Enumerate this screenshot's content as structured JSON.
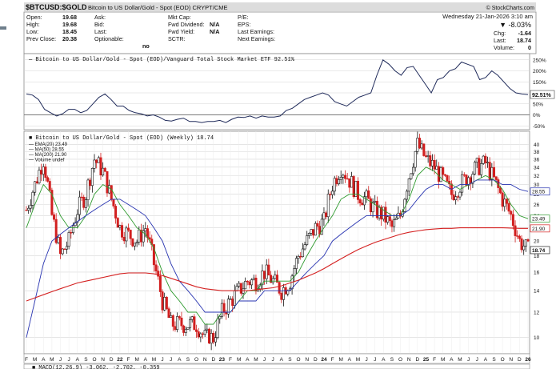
{
  "header": {
    "symbol_title": "$BTCUSD:$GOLD",
    "subtitle": "Bitcoin to US Dollar/Gold - Spot (EOD)  CRYPT/CME",
    "watermark": "© StockCharts.com",
    "date_time": "Wednesday  21-Jan-2026  3:10 am",
    "change_pct": "▼ -8.03%",
    "stats": [
      {
        "label": "Open:",
        "value": "19.68"
      },
      {
        "label": "High:",
        "value": "19.68"
      },
      {
        "label": "Low:",
        "value": "18.45"
      },
      {
        "label": "Prev Close:",
        "value": "20.38"
      }
    ],
    "col2": [
      "Ask:",
      "Bid:",
      "Last:",
      "Optionable:"
    ],
    "col2_value": "no",
    "col3": [
      {
        "label": "Mkt Cap:",
        "value": ""
      },
      {
        "label": "Fwd Dividend:",
        "value": "N/A"
      },
      {
        "label": "Fwd Yield:",
        "value": "N/A"
      },
      {
        "label": "SCTR:",
        "value": ""
      }
    ],
    "col4": [
      "P/E:",
      "EPS:",
      "Last Earnings:",
      "Next Earnings:"
    ],
    "right_stats": [
      {
        "label": "Chg:",
        "value": "-1.64"
      },
      {
        "label": "Last:",
        "value": "18.74"
      },
      {
        "label": "Volume:",
        "value": "0"
      }
    ]
  },
  "chart_data": [
    {
      "type": "line",
      "title": "Bitcoin to US Dollar/Gold - Spot (EOD)/Vanguard Total Stock Market ETF 92.51%",
      "unit": "%",
      "ylim": [
        -60,
        260
      ],
      "yticks": [
        250,
        200,
        150,
        100,
        50,
        0,
        -50
      ],
      "ytick_labels": [
        "250%",
        "200%",
        "150%",
        "100%",
        "50%",
        "0%",
        "-50%"
      ],
      "last_value_label": "92.51%",
      "x_start": "2021-03",
      "values": [
        95,
        90,
        70,
        25,
        10,
        -5,
        5,
        25,
        25,
        10,
        20,
        50,
        80,
        95,
        70,
        40,
        40,
        20,
        10,
        5,
        -5,
        0,
        -10,
        -25,
        -28,
        -20,
        -15,
        -30,
        -30,
        -35,
        -30,
        -30,
        -25,
        -35,
        -20,
        -10,
        -12,
        -5,
        -15,
        -5,
        -10,
        -10,
        -5,
        20,
        30,
        50,
        70,
        80,
        90,
        100,
        90,
        60,
        50,
        40,
        60,
        80,
        90,
        100,
        180,
        250,
        230,
        200,
        180,
        215,
        220,
        180,
        140,
        100,
        160,
        170,
        200,
        210,
        240,
        230,
        220,
        160,
        170,
        200,
        180,
        150,
        120,
        100,
        95,
        92.51
      ]
    },
    {
      "type": "candlestick",
      "title": "Bitcoin to US Dollar/Gold - Spot (EOD) (Weekly) 18.74",
      "scale": "log",
      "ylim": [
        9,
        43
      ],
      "yticks": [
        40,
        38,
        36,
        34,
        32,
        30,
        28,
        26,
        24,
        22,
        20,
        18,
        16,
        14,
        12,
        10
      ],
      "x_labels": [
        "F",
        "M",
        "A",
        "M",
        "J",
        "J",
        "A",
        "S",
        "O",
        "N",
        "D",
        "22",
        "F",
        "M",
        "A",
        "M",
        "J",
        "J",
        "A",
        "S",
        "O",
        "N",
        "D",
        "23",
        "F",
        "M",
        "A",
        "M",
        "J",
        "J",
        "A",
        "S",
        "O",
        "N",
        "D",
        "24",
        "F",
        "M",
        "A",
        "M",
        "J",
        "J",
        "A",
        "S",
        "O",
        "N",
        "D",
        "25",
        "F",
        "M",
        "A",
        "M",
        "J",
        "J",
        "A",
        "S",
        "O",
        "N",
        "D",
        "26"
      ],
      "month_closes": [
        25,
        30,
        36,
        24,
        18,
        20,
        25,
        28,
        36,
        33,
        27,
        22,
        21,
        20,
        22,
        17,
        13,
        11,
        11,
        11,
        11,
        10,
        10,
        12,
        13,
        14,
        15,
        15,
        16,
        15,
        14,
        15,
        18,
        20,
        22,
        23,
        30,
        34,
        31,
        28,
        27,
        25,
        24,
        22,
        24,
        32,
        40,
        36,
        34,
        31,
        28,
        30,
        32,
        34,
        35,
        31,
        27,
        24,
        20,
        18.74
      ],
      "series": [
        {
          "name": "EMA(20)",
          "last": "23.49",
          "values": [
            22,
            26,
            30,
            28,
            24,
            22,
            22,
            24,
            28,
            30,
            29,
            26,
            24,
            22,
            21,
            19,
            16,
            14,
            13,
            12,
            12,
            11,
            11,
            12,
            12,
            13,
            14,
            14,
            15,
            15,
            15,
            15,
            16,
            18,
            20,
            22,
            24,
            27,
            28,
            28,
            27,
            26,
            25,
            24,
            24,
            27,
            32,
            34,
            33,
            31,
            30,
            29,
            30,
            31,
            32,
            31,
            29,
            26,
            24,
            23.49
          ]
        },
        {
          "name": "MA(50)",
          "last": "28.55",
          "values": [
            10,
            13,
            17,
            20,
            21,
            22,
            23,
            24,
            25,
            26,
            27,
            27,
            26,
            25,
            24,
            22,
            20,
            17,
            15,
            14,
            13,
            12,
            12,
            12,
            12,
            13,
            13,
            13,
            14,
            14,
            14,
            14,
            15,
            16,
            17,
            18,
            20,
            21,
            22,
            23,
            24,
            24,
            24,
            24,
            24,
            25,
            27,
            29,
            30,
            30,
            29,
            30,
            30,
            31,
            31,
            31,
            30,
            30,
            29,
            28.55
          ]
        },
        {
          "name": "MA(200)",
          "last": "21.90",
          "values": [
            13,
            13.3,
            13.6,
            13.9,
            14.2,
            14.5,
            14.8,
            15,
            15.2,
            15.4,
            15.6,
            15.8,
            15.9,
            15.9,
            15.9,
            15.8,
            15.6,
            15.3,
            15,
            14.7,
            14.4,
            14.2,
            14.1,
            14,
            14,
            14,
            14,
            14.1,
            14.2,
            14.3,
            14.5,
            14.8,
            15.1,
            15.5,
            15.9,
            16.4,
            17,
            17.6,
            18.2,
            18.8,
            19.3,
            19.8,
            20.2,
            20.6,
            21,
            21.3,
            21.5,
            21.7,
            21.8,
            21.9,
            21.9,
            22,
            22,
            22,
            22,
            22,
            22,
            21.95,
            21.9,
            21.9
          ]
        },
        {
          "name": "Volume undef",
          "last": "",
          "values": []
        }
      ],
      "last_value_label": "18.74"
    },
    {
      "type": "line",
      "title": "MACD(12,26,9) -3.062, -2.702, -0.359",
      "values": []
    }
  ],
  "colors": {
    "price_down": "#d11f1f",
    "price_up": "#111111",
    "ema20": "#2e9a2e",
    "ma50": "#2733b0",
    "ma200": "#d42020",
    "ratio_line": "#1f2a5a",
    "panel_border": "#8a8a8a",
    "grid": "#d6d6d6",
    "blue_tag": "#1e3aa8"
  }
}
